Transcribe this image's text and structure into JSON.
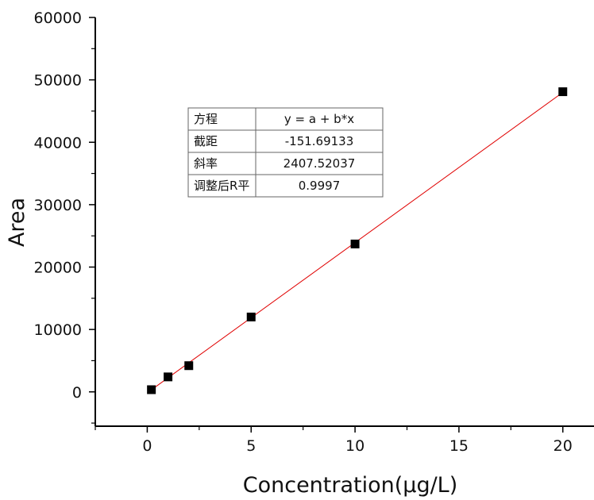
{
  "chart_data": {
    "type": "scatter",
    "x_label": "Concentration(μg/L)",
    "y_label": "Area",
    "xlim": [
      -2.5,
      21.5
    ],
    "ylim": [
      -5500,
      60000
    ],
    "x_ticks": [
      0,
      5,
      10,
      15,
      20
    ],
    "y_ticks": [
      0,
      10000,
      20000,
      30000,
      40000,
      50000,
      60000
    ],
    "x_tick_labels": [
      "0",
      "5",
      "10",
      "15",
      "20"
    ],
    "y_tick_labels": [
      "0",
      "10000",
      "20000",
      "30000",
      "40000",
      "50000",
      "60000"
    ],
    "grid": false,
    "legend": false,
    "marker": "square",
    "marker_color": "#000000",
    "fit_line_color": "#e00000",
    "series": [
      {
        "x": [
          0.2,
          1,
          2,
          5,
          10,
          20
        ],
        "y": [
          350,
          2400,
          4200,
          12000,
          23700,
          48100
        ]
      }
    ],
    "fit": {
      "intercept": -151.69133,
      "slope": 2407.52037,
      "x_range": [
        0.2,
        20
      ]
    },
    "fit_table": {
      "rows": [
        [
          "方程",
          "y = a + b*x"
        ],
        [
          "截距",
          "-151.69133"
        ],
        [
          "斜率",
          "2407.52037"
        ],
        [
          "调整后R平",
          "0.9997"
        ]
      ]
    }
  }
}
